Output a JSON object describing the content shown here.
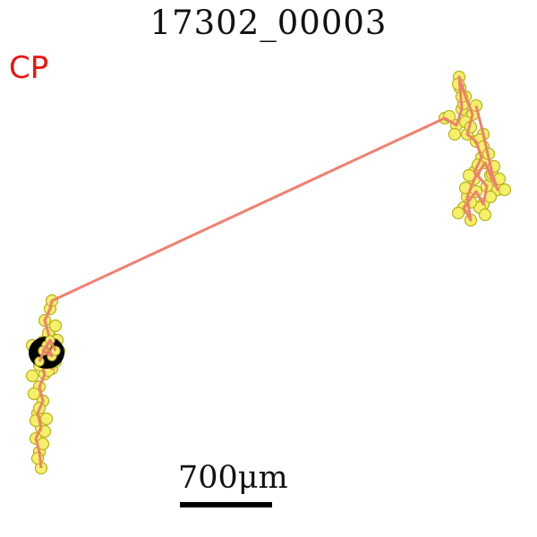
{
  "title": "17302_00003",
  "label": "CP",
  "scale_bar": {
    "text": "700μm"
  },
  "colors": {
    "track_line": "#f08070",
    "point_fill": "#f5f06a",
    "point_edge": "#b9b21a",
    "start_marker": "#000000",
    "label": "#e8150f"
  }
}
